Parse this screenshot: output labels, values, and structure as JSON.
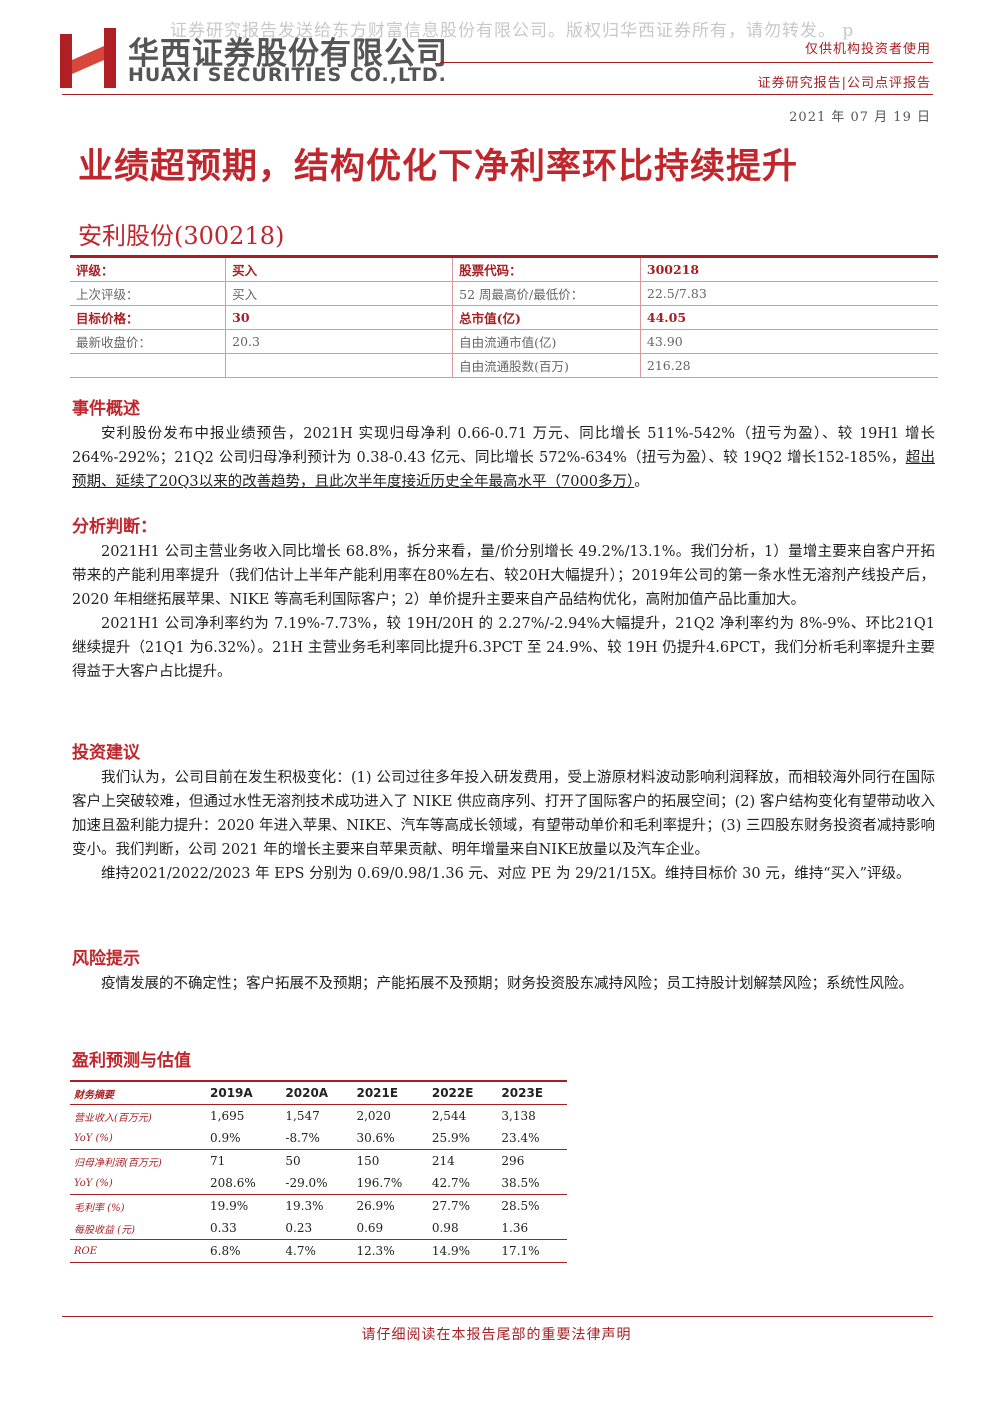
{
  "watermark": "证券研究报告发送给东方财富信息股份有限公司。版权归华西证券所有，请勿转发。 p",
  "header": {
    "company_cn": "华西证券股份有限公司",
    "company_en": "HUAXI SECURITIES CO.,LTD.",
    "audience": "仅供机构投资者使用",
    "report_type": "证券研究报告|公司点评报告",
    "date": "2021 年 07 月 19 日"
  },
  "title": "业绩超预期，结构优化下净利率环比持续提升",
  "stock": "安利股份(300218)",
  "info_table": {
    "rows": [
      {
        "label": "评级：",
        "value": "买入",
        "label2": "股票代码：",
        "value2": "300218"
      },
      {
        "label": "上次评级：",
        "value": "买入",
        "label2": "52 周最高价/最低价：",
        "value2": "22.5/7.83"
      },
      {
        "label": "目标价格：",
        "value": "30",
        "label2": "总市值(亿)",
        "value2": "44.05"
      },
      {
        "label": "最新收盘价：",
        "value": "20.3",
        "label2": "自由流通市值(亿)",
        "value2": "43.90"
      },
      {
        "label2": "自由流通股数(百万)",
        "value2": "216.28"
      }
    ]
  },
  "sections": [
    {
      "heading": "事件概述",
      "paragraphs": [
        {
          "text": "安利股份发布中报业绩预告，2021H 实现归母净利 0.66-0.71 万元、同比增长 511%-542%（扭亏为盈）、较 19H1 增长 264%-292%；21Q2 公司归母净利预计为 0.38-0.43 亿元、同比增长 572%-634%（扭亏为盈）、较 19Q2 增长152-185%，",
          "underlined": "超出预期、延续了20Q3以来的改善趋势，且此次半年度接近历史全年最高水平（7000多万）",
          "tail": "。"
        }
      ]
    },
    {
      "heading": "分析判断：",
      "paragraphs": [
        {
          "text": "2021H1 公司主营业务收入同比增长 68.8%，拆分来看，量/价分别增长 49.2%/13.1%。我们分析，1）量增主要来自客户开拓带来的产能利用率提升（我们估计上半年产能利用率在80%左右、较20H大幅提升）；2019年公司的第一条水性无溶剂产线投产后， 2020 年相继拓展苹果、NIKE 等高毛利国际客户；2）单价提升主要来自产品结构优化，高附加值产品比重加大。"
        },
        {
          "text": "2021H1 公司净利率约为 7.19%-7.73%，较 19H/20H 的 2.27%/-2.94%大幅提升，21Q2 净利率约为 8%-9%、环比21Q1继续提升（21Q1 为6.32%）。21H 主营业务毛利率同比提升6.3PCT 至 24.9%、较 19H 仍提升4.6PCT，我们分析毛利率提升主要得益于大客户占比提升。"
        }
      ]
    },
    {
      "heading": "投资建议",
      "paragraphs": [
        {
          "text": "我们认为，公司目前在发生积极变化：(1) 公司过往多年投入研发费用，受上游原材料波动影响利润释放，而相较海外同行在国际客户上突破较难，但通过水性无溶剂技术成功进入了 NIKE 供应商序列、打开了国际客户的拓展空间；(2) 客户结构变化有望带动收入加速且盈利能力提升：2020 年进入苹果、NIKE、汽车等高成长领域，有望带动单价和毛利率提升；(3) 三四股东财务投资者减持影响变小。我们判断，公司 2021 年的增长主要来自苹果贡献、明年增量来自NIKE放量以及汽车企业。"
        },
        {
          "text": "维持2021/2022/2023 年 EPS 分别为 0.69/0.98/1.36 元、对应 PE 为 29/21/15X。维持目标价 30 元，维持“买入”评级。"
        }
      ]
    },
    {
      "heading": "风险提示",
      "paragraphs": [
        {
          "text": "疫情发展的不确定性；客户拓展不及预期；产能拓展不及预期；财务投资股东减持风险；员工持股计划解禁风险；系统性风险。"
        }
      ]
    }
  ],
  "forecast": {
    "title": "盈利预测与估值",
    "header": [
      "财务摘要",
      "2019A",
      "2020A",
      "2021E",
      "2022E",
      "2023E"
    ],
    "rows": [
      [
        "营业收入(百万元)",
        "1,695",
        "1,547",
        "2,020",
        "2,544",
        "3,138"
      ],
      [
        "YoY (%)",
        "0.9%",
        "-8.7%",
        "30.6%",
        "25.9%",
        "23.4%"
      ],
      [
        "归母净利润(百万元)",
        "71",
        "50",
        "150",
        "214",
        "296"
      ],
      [
        "YoY (%)",
        "208.6%",
        "-29.0%",
        "196.7%",
        "42.7%",
        "38.5%"
      ],
      [
        "毛利率 (%)",
        "19.9%",
        "19.3%",
        "26.9%",
        "27.7%",
        "28.5%"
      ],
      [
        "每股收益 (元)",
        "0.33",
        "0.23",
        "0.69",
        "0.98",
        "1.36"
      ],
      [
        "ROE",
        "6.8%",
        "4.7%",
        "12.3%",
        "14.9%",
        "17.1%"
      ]
    ]
  },
  "footer": "请仔细阅读在本报告尾部的重要法律声明"
}
